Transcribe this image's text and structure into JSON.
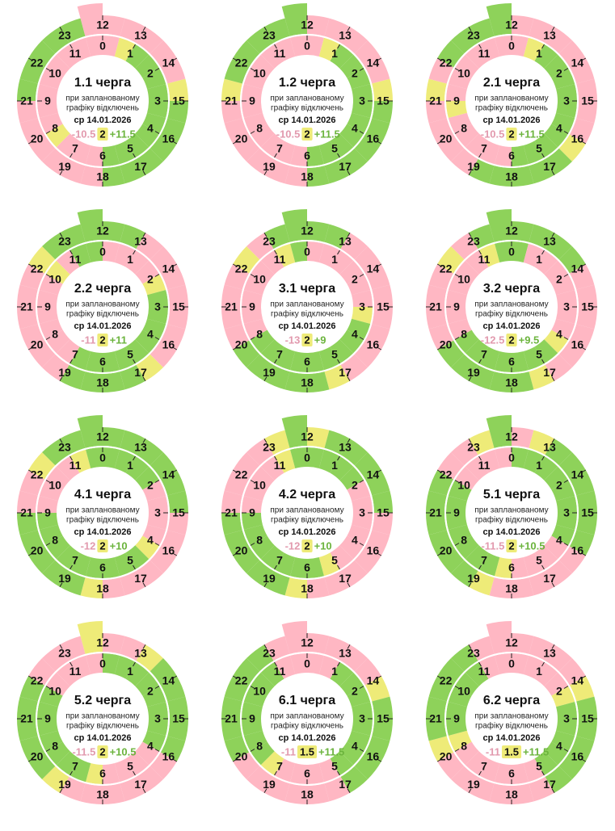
{
  "date": "ср 14.01.2026",
  "note": [
    "при запланованому",
    "графіку відключень"
  ],
  "hours": [
    0,
    1,
    2,
    3,
    4,
    5,
    6,
    7,
    8,
    9,
    10,
    11,
    12,
    13,
    14,
    15,
    16,
    17,
    18,
    19,
    20,
    21,
    22,
    23
  ],
  "colors": {
    "P": "#ffb7c3",
    "G": "#8ed25a",
    "Y": "#eeeb78"
  },
  "queues": [
    {
      "name": "1.1 черга",
      "off": "-10.5",
      "mid": "2",
      "on": "+11.5",
      "inner": "PYGGGGGGGGGGPPPYPPPPPPPP",
      "outer": "PPPPPYGGGGGGPPPPPPGGGGGP"
    },
    {
      "name": "1.2 черга",
      "off": "-10.5",
      "mid": "2",
      "on": "+11.5",
      "inner": "PYGGGGGGGGGGPPPPPPPPPPPP",
      "outer": "PPPPPYGGGGGGPPPPPPYGGGGG"
    },
    {
      "name": "2.1 черга",
      "off": "-10.5",
      "mid": "2",
      "on": "+11.5",
      "inner": "PYGGGGGGGGGGPPPPPYPPPPPP",
      "outer": "PPPPPPPPYGGGGGPPPPYPGGGG"
    },
    {
      "name": "2.2 черга",
      "off": "-11",
      "mid": "2",
      "on": "+11",
      "inner": "PPPPYGGGGGGGGGPPPPPPYPGG",
      "outer": "GGPPPPPPPYGGGGPPPPPPYGGG"
    },
    {
      "name": "3.1 черга",
      "off": "-13",
      "mid": "2",
      "on": "+9",
      "inner": "PPPPPPYGGGGGGGGGPPPPPPYG",
      "outer": "GGPPPPPPPPYGGGGGPPPPYPGG"
    },
    {
      "name": "3.2 черга",
      "off": "-12.5",
      "mid": "2",
      "on": "+9.5",
      "inner": "GPPPPPPPYGGGGGGGPPPPPPYG",
      "outer": "GGGGPPPPPPYGGGGGPPPPYPGG"
    },
    {
      "name": "4.1 черга",
      "off": "-12",
      "mid": "2",
      "on": "+10",
      "inner": "GGGGPPPPYGGGGGGGGGPPPPYG",
      "outer": "GGGGGGPPPPPPYGGGGGPPYGGG"
    },
    {
      "name": "4.2 черга",
      "off": "-12",
      "mid": "2",
      "on": "+10",
      "inner": "GGGGPPPPPPYGGGGGGGPPPPYG",
      "outer": "YGGGGGPPPPPPYGGGGGPPPPYG"
    },
    {
      "name": "5.1 черга",
      "off": "-11.5",
      "mid": "2",
      "on": "+10.5",
      "inner": "GGGGGGGGPPPPYGGGGGGGPPPP",
      "outer": "PYGGGGGGPPPPPYGGGGGGPPYG"
    },
    {
      "name": "5.2 черга",
      "off": "-11.5",
      "mid": "2",
      "on": "+10.5",
      "inner": "GGGGGGGGPPPPYGGGGGGGPPPP",
      "outer": "PPYGGGGGPPPPPPYGGGGGPPPY"
    },
    {
      "name": "6.1 черга",
      "off": "-11",
      "mid": "1.5",
      "on": "+11.5",
      "inner": "PPGGGGGGGGPPPPYGGGGGGGPP",
      "outer": "PPPPYGGGGGPPPPPPGGGGGGPP"
    },
    {
      "name": "6.2 черга",
      "off": "-11",
      "mid": "1.5",
      "on": "+11.5",
      "inner": "PPPPYGGGGGPPPPPPYGGGGGPP",
      "outer": "PPPPYGGGGGPPPPPPYGGGGGPP"
    }
  ]
}
